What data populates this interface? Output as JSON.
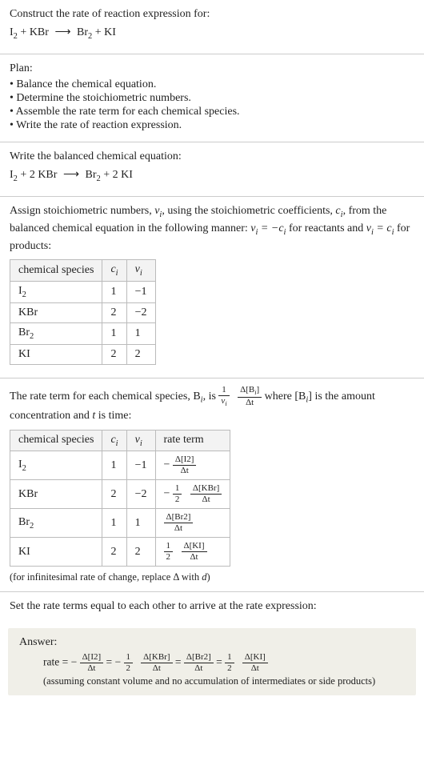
{
  "s1": {
    "prompt": "Construct the rate of reaction expression for:",
    "eq_lhs1": "I",
    "eq_lhs1_sub": "2",
    "eq_plus1": " + KBr ",
    "eq_arrow": "⟶",
    "eq_rhs1": " Br",
    "eq_rhs1_sub": "2",
    "eq_plus2": " + KI"
  },
  "plan": {
    "title": "Plan:",
    "items": [
      "Balance the chemical equation.",
      "Determine the stoichiometric numbers.",
      "Assemble the rate term for each chemical species.",
      "Write the rate of reaction expression."
    ]
  },
  "balanced": {
    "intro": "Write the balanced chemical equation:",
    "lhs1": "I",
    "lhs1_sub": "2",
    "mid1": " + 2 KBr ",
    "arrow": "⟶",
    "rhs1": " Br",
    "rhs1_sub": "2",
    "mid2": " + 2 KI"
  },
  "assign": {
    "text_a": "Assign stoichiometric numbers, ",
    "nu_i": "ν",
    "nu_sub": "i",
    "text_b": ", using the stoichiometric coefficients, ",
    "c_i": "c",
    "c_sub": "i",
    "text_c": ", from the balanced chemical equation in the following manner: ",
    "rel1a": "ν",
    "rel1b": "i",
    "rel1c": " = −c",
    "rel1d": "i",
    "text_d": " for reactants and ",
    "rel2a": "ν",
    "rel2b": "i",
    "rel2c": " = c",
    "rel2d": "i",
    "text_e": " for products:"
  },
  "table1": {
    "h1": "chemical species",
    "h2": "c",
    "h2s": "i",
    "h3": "ν",
    "h3s": "i",
    "rows": [
      {
        "sp": "I",
        "sub": "2",
        "c": "1",
        "v": "−1"
      },
      {
        "sp": "KBr",
        "sub": "",
        "c": "2",
        "v": "−2"
      },
      {
        "sp": "Br",
        "sub": "2",
        "c": "1",
        "v": "1"
      },
      {
        "sp": "KI",
        "sub": "",
        "c": "2",
        "v": "2"
      }
    ]
  },
  "rateterm": {
    "t1": "The rate term for each chemical species, B",
    "t1s": "i",
    "t2": ", is ",
    "f1n": "1",
    "f1d_a": "ν",
    "f1d_b": "i",
    "f2n_a": "Δ[B",
    "f2n_b": "i",
    "f2n_c": "]",
    "f2d": "Δt",
    "t3": " where [B",
    "t3s": "i",
    "t4": "] is the amount concentration and ",
    "t5": "t",
    "t6": " is time:"
  },
  "table2": {
    "h1": "chemical species",
    "h2": "c",
    "h2s": "i",
    "h3": "ν",
    "h3s": "i",
    "h4": "rate term",
    "rows": [
      {
        "sp": "I",
        "sub": "2",
        "c": "1",
        "v": "−1",
        "neg": "−",
        "coef_n": "",
        "coef_d": "",
        "conc": "Δ[I2]",
        "dt": "Δt"
      },
      {
        "sp": "KBr",
        "sub": "",
        "c": "2",
        "v": "−2",
        "neg": "−",
        "coef_n": "1",
        "coef_d": "2",
        "conc": "Δ[KBr]",
        "dt": "Δt"
      },
      {
        "sp": "Br",
        "sub": "2",
        "c": "1",
        "v": "1",
        "neg": "",
        "coef_n": "",
        "coef_d": "",
        "conc": "Δ[Br2]",
        "dt": "Δt"
      },
      {
        "sp": "KI",
        "sub": "",
        "c": "2",
        "v": "2",
        "neg": "",
        "coef_n": "1",
        "coef_d": "2",
        "conc": "Δ[KI]",
        "dt": "Δt"
      }
    ],
    "note_a": "(for infinitesimal rate of change, replace Δ with ",
    "note_b": "d",
    "note_c": ")"
  },
  "setequal": "Set the rate terms equal to each other to arrive at the rate expression:",
  "answer": {
    "label": "Answer:",
    "lead": "rate = ",
    "t1_neg": "−",
    "t1_n": "Δ[I2]",
    "t1_d": "Δt",
    "eq": " = ",
    "t2_neg": "−",
    "t2_cn": "1",
    "t2_cd": "2",
    "t2_n": "Δ[KBr]",
    "t2_d": "Δt",
    "t3_n": "Δ[Br2]",
    "t3_d": "Δt",
    "t4_cn": "1",
    "t4_cd": "2",
    "t4_n": "Δ[KI]",
    "t4_d": "Δt",
    "assume": "(assuming constant volume and no accumulation of intermediates or side products)"
  }
}
